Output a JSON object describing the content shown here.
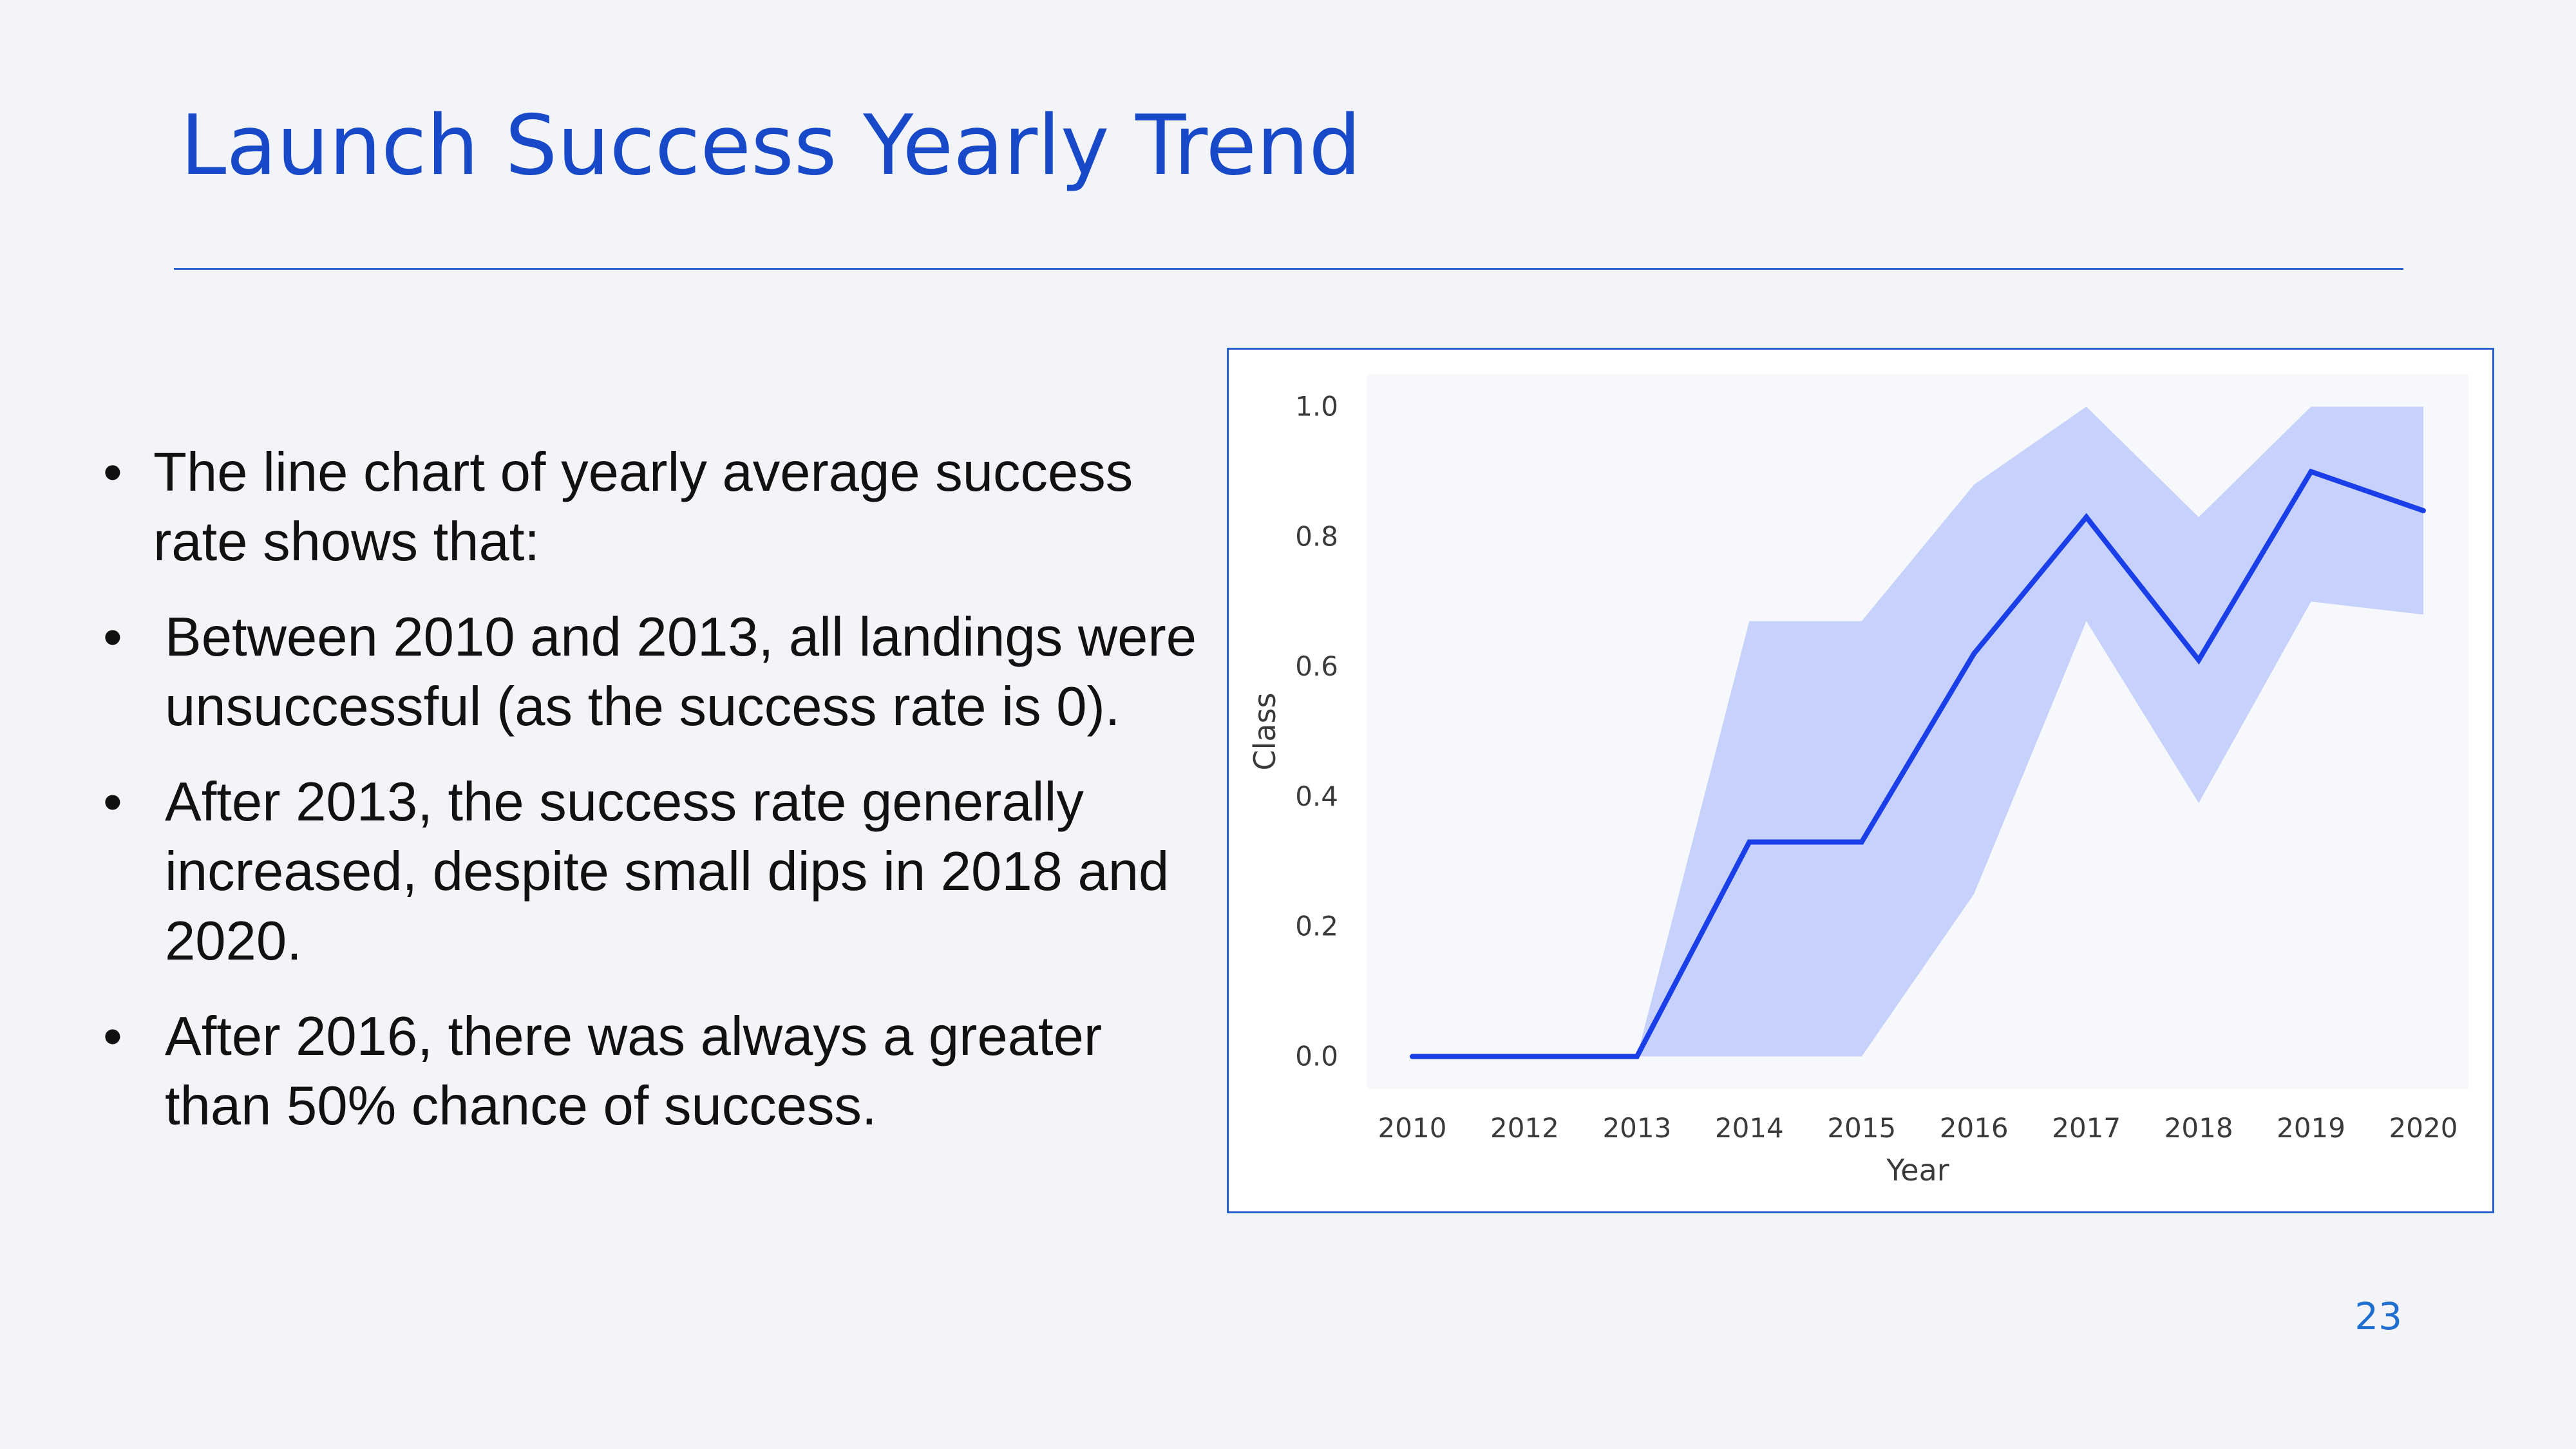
{
  "slide": {
    "title": "Launch Success Yearly Trend",
    "page_number": "23",
    "bullet_symbol": "•",
    "bullets": [
      "The line chart of yearly average success rate shows that:",
      "Between 2010 and 2013, all landings were unsuccessful (as the success rate is 0).",
      "After 2013, the success rate generally increased, despite small dips in 2018 and 2020.",
      "After 2016, there was always a greater than 50% chance of success."
    ]
  },
  "chart_data": {
    "type": "line",
    "title": "",
    "xlabel": "Year",
    "ylabel": "Class",
    "x": [
      "2010",
      "2012",
      "2013",
      "2014",
      "2015",
      "2016",
      "2017",
      "2018",
      "2019",
      "2020"
    ],
    "series": [
      {
        "values": [
          0.0,
          0.0,
          0.0,
          0.33,
          0.33,
          0.62,
          0.83,
          0.61,
          0.9,
          0.84
        ],
        "confidence_interval": {
          "lower": [
            0.0,
            0.0,
            0.0,
            0.0,
            0.0,
            0.25,
            0.67,
            0.39,
            0.7,
            0.68
          ],
          "upper": [
            0.0,
            0.0,
            0.0,
            0.67,
            0.67,
            0.88,
            1.0,
            0.83,
            1.0,
            1.0
          ]
        }
      }
    ],
    "yticks": [
      "0.0",
      "0.2",
      "0.4",
      "0.6",
      "0.8",
      "1.0"
    ],
    "ylim": [
      -0.05,
      1.05
    ],
    "grid": false,
    "colors": {
      "line": "#1a3fe8",
      "band": "#c6d2fb",
      "plot_background": "#f7f8fc"
    }
  }
}
